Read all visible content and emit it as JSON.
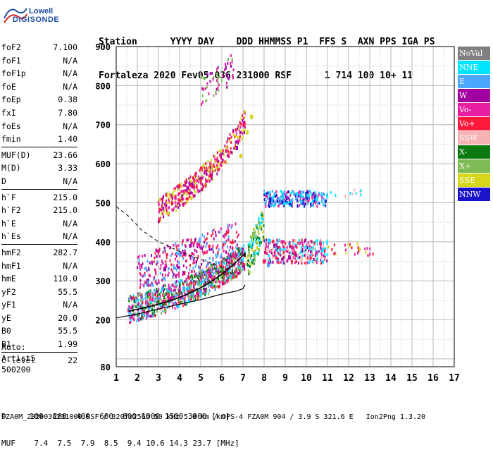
{
  "logo": {
    "line1": "Lowell",
    "line2": "DIGISONDE"
  },
  "header": {
    "labels": "Station      YYYY DAY    DDD HHMMSS P1  FFS S  AXN PPS IGA PS",
    "values": "Fortaleza 2020 Fev05 036 231000 RSF      1 714 100 10+ 11"
  },
  "params": [
    {
      "name": "foF2",
      "value": "7.100"
    },
    {
      "name": "foF1",
      "value": "N/A"
    },
    {
      "name": "foF1p",
      "value": "N/A"
    },
    {
      "name": "foE",
      "value": "N/A"
    },
    {
      "name": "foEp",
      "value": "0.38"
    },
    {
      "name": "fxI",
      "value": "7.80"
    },
    {
      "name": "foEs",
      "value": "N/A"
    },
    {
      "name": "fmin",
      "value": "1.40"
    },
    {
      "sep": true
    },
    {
      "name": "MUF(D)",
      "value": "23.66"
    },
    {
      "name": "M(D)",
      "value": "3.33"
    },
    {
      "name": "D",
      "value": "N/A"
    },
    {
      "sep": true
    },
    {
      "name": "h`F",
      "value": "215.0"
    },
    {
      "name": "h`F2",
      "value": "215.0"
    },
    {
      "name": "h`E",
      "value": "N/A"
    },
    {
      "name": "h`Es",
      "value": "N/A"
    },
    {
      "sep": true
    },
    {
      "name": "hmF2",
      "value": "282.7"
    },
    {
      "name": "hmF1",
      "value": "N/A"
    },
    {
      "name": "hmE",
      "value": "110.0"
    },
    {
      "name": "yF2",
      "value": "55.5"
    },
    {
      "name": "yF1",
      "value": "N/A"
    },
    {
      "name": "yE",
      "value": "20.0"
    },
    {
      "name": "B0",
      "value": "55.5"
    },
    {
      "name": "B1",
      "value": "1.99"
    },
    {
      "sep": true
    },
    {
      "name": "C-level",
      "value": "22"
    }
  ],
  "auto": {
    "line1": "Auto:",
    "line2": "Artist5",
    "line3": "500200"
  },
  "legend": [
    {
      "label": "NoVal",
      "color": "#808080"
    },
    {
      "label": "NNE",
      "color": "#00e5ff"
    },
    {
      "label": "E",
      "color": "#4aa8ff"
    },
    {
      "label": "W",
      "color": "#a000a0"
    },
    {
      "label": "Vo-",
      "color": "#e61ea0"
    },
    {
      "label": "Vo+",
      "color": "#ff1a3c"
    },
    {
      "label": "SSW",
      "color": "#f5b3b3"
    },
    {
      "label": "X-",
      "color": "#0a7a10"
    },
    {
      "label": "X+",
      "color": "#7dbb55"
    },
    {
      "label": "SSE",
      "color": "#d6d61a"
    },
    {
      "label": "NNW",
      "color": "#1a14c8"
    }
  ],
  "bottom": {
    "d_row": "D     100  200  400  600  800 1000 1500 3000 [km]",
    "muf_row": "MUF    7.4  7.5  7.9  8.5  9.4 10.6 14.3 23.7 [MHz]"
  },
  "footer": "FZA0M_2020036231000.RSF / 320fx256h 50 kHz 5.0 km / DPS-4 FZA0M 904 / 3.9 S 321.6 E   Ion2Png 1.3.20",
  "chart_data": {
    "type": "scatter",
    "x_ticks": [
      "1",
      "2",
      "3",
      "4",
      "5",
      "6",
      "7",
      "8",
      "9",
      "10",
      "11",
      "12",
      "13",
      "14",
      "15",
      "16",
      "17"
    ],
    "y_ticks": [
      "80",
      "200",
      "300",
      "400",
      "500",
      "600",
      "700",
      "800",
      "900"
    ],
    "xlim": [
      1,
      17
    ],
    "ylim": [
      80,
      900
    ],
    "grid": true,
    "series": [
      {
        "name": "NNE",
        "color": "#00e5ff",
        "points": [
          [
            8.3,
            510
          ],
          [
            9.0,
            500
          ],
          [
            10.0,
            520
          ],
          [
            10.5,
            510
          ],
          [
            8.6,
            380
          ],
          [
            9.5,
            390
          ],
          [
            10.5,
            370
          ],
          [
            10.8,
            380
          ]
        ]
      },
      {
        "name": "W",
        "color": "#a000a0",
        "points": [
          [
            2.5,
            300
          ],
          [
            3.3,
            330
          ],
          [
            4.2,
            320
          ],
          [
            5.2,
            320
          ],
          [
            6.1,
            320
          ],
          [
            8.5,
            390
          ],
          [
            9.2,
            360
          ],
          [
            6.7,
            640
          ],
          [
            5.5,
            570
          ],
          [
            4.5,
            550
          ]
        ]
      },
      {
        "name": "Vo+",
        "color": "#ff1a3c",
        "points": [
          [
            1.6,
            225
          ],
          [
            2.5,
            240
          ],
          [
            3.5,
            255
          ],
          [
            4.5,
            275
          ],
          [
            5.5,
            290
          ],
          [
            6.5,
            310
          ],
          [
            7.0,
            340
          ],
          [
            8.0,
            350
          ]
        ]
      },
      {
        "name": "X+",
        "color": "#7dbb55",
        "points": [
          [
            3.0,
            250
          ],
          [
            4.0,
            270
          ],
          [
            5.0,
            290
          ],
          [
            6.0,
            310
          ],
          [
            6.8,
            330
          ],
          [
            7.5,
            420
          ]
        ]
      },
      {
        "name": "SSE",
        "color": "#d6d61a",
        "points": [
          [
            7.4,
            720
          ],
          [
            7.2,
            680
          ],
          [
            6.9,
            620
          ],
          [
            12.5,
            380
          ]
        ]
      },
      {
        "name": "E",
        "color": "#4aa8ff",
        "points": [
          [
            2.2,
            260
          ],
          [
            3.2,
            280
          ],
          [
            4.2,
            280
          ],
          [
            5.2,
            290
          ],
          [
            8.2,
            340
          ]
        ]
      }
    ]
  }
}
